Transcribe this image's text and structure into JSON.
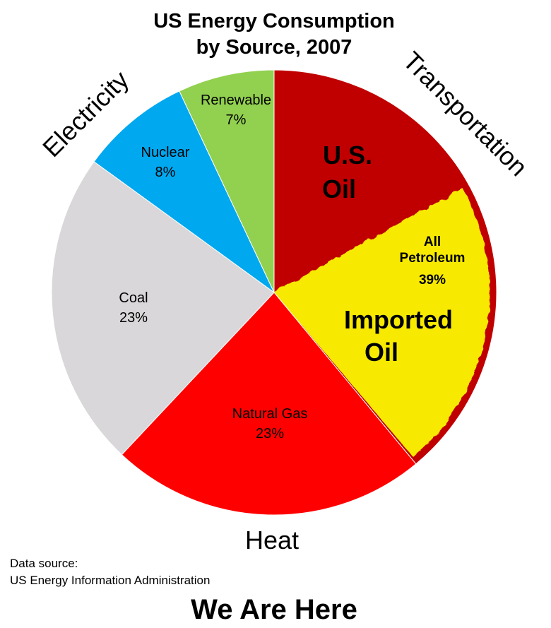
{
  "chart_data": {
    "type": "pie",
    "title_line1": "US Energy Consumption",
    "title_line2": "by Source, 2007",
    "slices": [
      {
        "name": "All Petroleum",
        "value": 39,
        "label": "39%",
        "color": "#c00000",
        "sub_parts": [
          {
            "name": "U.S. Oil",
            "color": "#c00000"
          },
          {
            "name": "Imported Oil",
            "color": "#f7ea00"
          }
        ]
      },
      {
        "name": "Natural Gas",
        "value": 23,
        "label": "23%",
        "color": "#ff0000"
      },
      {
        "name": "Coal",
        "value": 23,
        "label": "23%",
        "color": "#d9d7d9"
      },
      {
        "name": "Nuclear",
        "value": 8,
        "label": "8%",
        "color": "#00a8f0"
      },
      {
        "name": "Renewable",
        "value": 7,
        "label": "7%",
        "color": "#92d050"
      }
    ],
    "petroleum_label": {
      "line1": "All",
      "line2": "Petroleum",
      "line3": "39%"
    },
    "us_oil_label": {
      "line1": "U.S.",
      "line2": "Oil"
    },
    "imported_oil_label": {
      "line1": "Imported",
      "line2": "Oil"
    },
    "end_uses": {
      "electricity": "Electricity",
      "transportation": "Transportation",
      "heat": "Heat"
    }
  },
  "footer": {
    "source_line1": "Data source:",
    "source_line2": "US Energy Information Administration",
    "headline": "We Are Here"
  }
}
